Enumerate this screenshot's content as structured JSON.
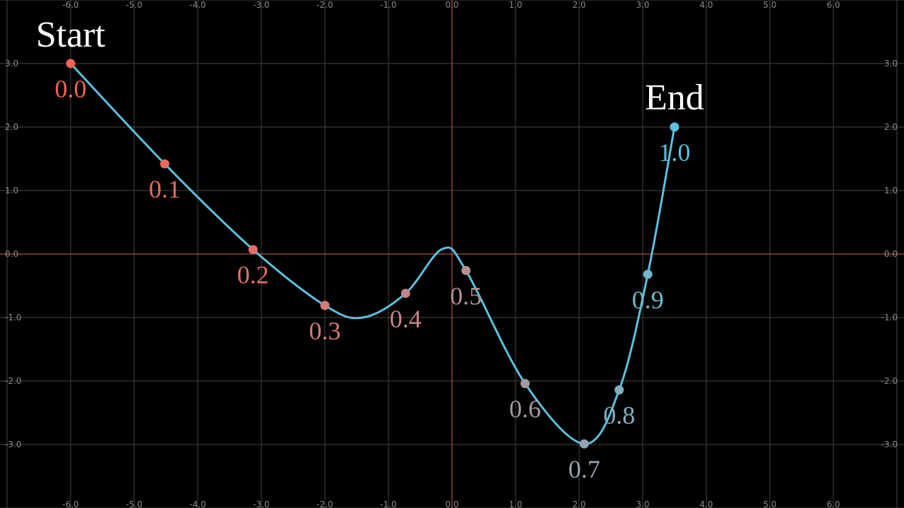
{
  "chart_data": {
    "type": "line",
    "title": "",
    "xlabel": "",
    "ylabel": "",
    "xlim": [
      -7.0,
      7.2
    ],
    "ylim": [
      -4.0,
      4.0
    ],
    "grid": true,
    "x_tick_labels": [
      "-6.0",
      "-5.0",
      "-4.0",
      "-3.0",
      "-2.0",
      "-1.0",
      "0.0",
      "1.0",
      "2.0",
      "3.0",
      "4.0",
      "5.0",
      "6.0"
    ],
    "y_tick_labels": [
      "3.0",
      "2.0",
      "1.0",
      "0.0",
      "-1.0",
      "-2.0",
      "-3.0"
    ],
    "start_label": "Start",
    "end_label": "End",
    "curve": {
      "x": [
        -6.0,
        -4.52,
        -3.13,
        -2.0,
        -1.4,
        -0.73,
        -0.15,
        0.22,
        1.15,
        2.08,
        2.63,
        3.08,
        3.5
      ],
      "y": [
        3.0,
        1.42,
        0.07,
        -0.81,
        -1.0,
        -0.62,
        0.08,
        -0.26,
        -2.04,
        -2.99,
        -2.14,
        -0.32,
        2.0
      ]
    },
    "series": [
      {
        "name": "",
        "points": [
          {
            "t": "0.0",
            "x": -6.0,
            "y": 3.0,
            "color": "#f0625a"
          },
          {
            "t": "0.1",
            "x": -4.52,
            "y": 1.42,
            "color": "#ea6a62"
          },
          {
            "t": "0.2",
            "x": -3.13,
            "y": 0.07,
            "color": "#e2706a"
          },
          {
            "t": "0.3",
            "x": -2.0,
            "y": -0.81,
            "color": "#d57b78"
          },
          {
            "t": "0.4",
            "x": -0.73,
            "y": -0.62,
            "color": "#c58487"
          },
          {
            "t": "0.5",
            "x": 0.22,
            "y": -0.26,
            "color": "#b48f94"
          },
          {
            "t": "0.6",
            "x": 1.15,
            "y": -2.04,
            "color": "#a39aa2"
          },
          {
            "t": "0.7",
            "x": 2.08,
            "y": -2.99,
            "color": "#94a4b0"
          },
          {
            "t": "0.8",
            "x": 2.63,
            "y": -2.14,
            "color": "#83aebf"
          },
          {
            "t": "0.9",
            "x": 3.08,
            "y": -0.32,
            "color": "#6fb8cd"
          },
          {
            "t": "1.0",
            "x": 3.5,
            "y": 2.0,
            "color": "#5cc1dd"
          }
        ]
      }
    ]
  },
  "colors": {
    "background": "#000000",
    "grid": "#3a3a3a",
    "axis": "#b05050",
    "curve": "#5cc1dd"
  }
}
